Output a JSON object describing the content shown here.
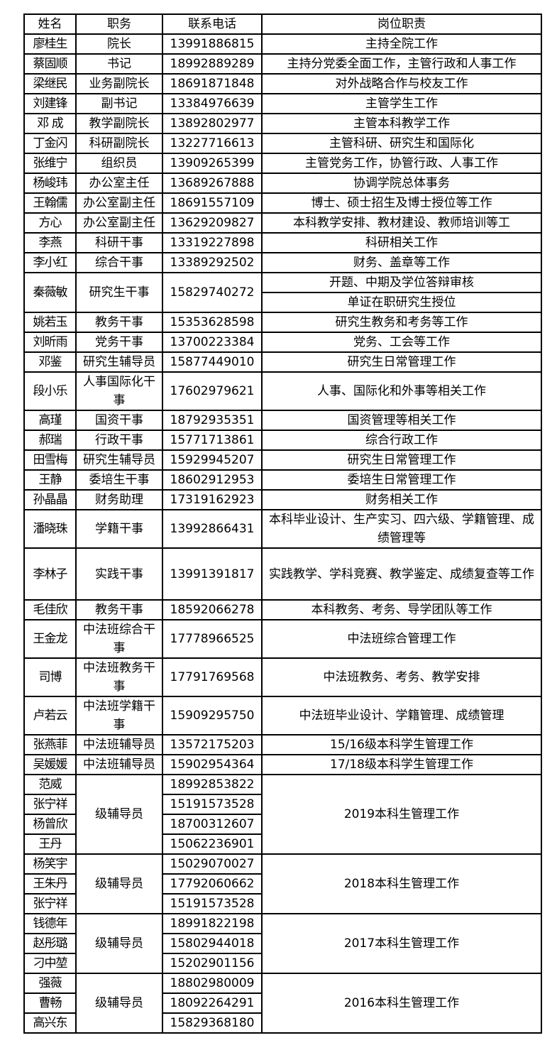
{
  "header": {
    "name": "姓名",
    "title": "职务",
    "phone": "联系电话",
    "duty": "岗位职责"
  },
  "rows": [
    {
      "name": "廖桂生",
      "title": "院长",
      "phone": "13991886815",
      "duties": [
        "主持全院工作"
      ]
    },
    {
      "name": "蔡固顺",
      "title": "书记",
      "phone": "18992889289",
      "duties": [
        "主持分党委全面工作，主管行政和人事工作"
      ]
    },
    {
      "name": "梁继民",
      "title": "业务副院长",
      "phone": "18691871848",
      "duties": [
        "对外战略合作与校友工作"
      ]
    },
    {
      "name": "刘建锋",
      "title": "副书记",
      "phone": "13384976639",
      "duties": [
        "主管学生工作"
      ]
    },
    {
      "name": "邓  成",
      "title": "教学副院长",
      "phone": "13892802977",
      "duties": [
        "主管本科教学工作"
      ]
    },
    {
      "name": "丁金闪",
      "title": "科研副院长",
      "phone": "13227716613",
      "duties": [
        "主管科研、研究生和国际化"
      ]
    },
    {
      "name": "张维宁",
      "title": "组织员",
      "phone": "13909265399",
      "duties": [
        "主管党务工作，协管行政、人事工作"
      ]
    },
    {
      "name": "杨峻玮",
      "title": "办公室主任",
      "phone": "13689267888",
      "duties": [
        "协调学院总体事务"
      ]
    },
    {
      "name": "王翰儒",
      "title": "办公室副主任",
      "phone": "18691557109",
      "duties": [
        "博士、硕士招生及博士授位等工作"
      ]
    },
    {
      "name": "方心",
      "title": "办公室副主任",
      "phone": "13629209827",
      "duties": [
        "本科教学安排、教材建设、教师培训等工"
      ]
    },
    {
      "name": "李燕",
      "title": "科研干事",
      "phone": "13319227898",
      "duties": [
        "科研相关工作"
      ]
    },
    {
      "name": "李小红",
      "title": "综合干事",
      "phone": "13389292502",
      "duties": [
        "财务、盖章等工作"
      ]
    },
    {
      "name": "秦薇敏",
      "title": "研究生干事",
      "phone": "15829740272",
      "duties": [
        "开题、中期及学位答辩审核",
        "单证在职研究生授位"
      ]
    },
    {
      "name": "姚若玉",
      "title": "教务干事",
      "phone": "15353628598",
      "duties": [
        "研究生教务和考务等工作"
      ]
    },
    {
      "name": "刘昕雨",
      "title": "党务干事",
      "phone": "13700223384",
      "duties": [
        "党务、工会等工作"
      ]
    },
    {
      "name": "邓鉴",
      "title": "研究生辅导员",
      "phone": "15877449010",
      "duties": [
        "研究生日常管理工作"
      ]
    },
    {
      "name": "段小乐",
      "title": "人事国际化干事",
      "phone": "17602979621",
      "duties": [
        "人事、国际化和外事等相关工作"
      ]
    },
    {
      "name": "高瑾",
      "title": "国资干事",
      "phone": "18792935351",
      "duties": [
        "国资管理等相关工作"
      ]
    },
    {
      "name": "郝瑞",
      "title": "行政干事",
      "phone": "15771713861",
      "duties": [
        "综合行政工作"
      ]
    },
    {
      "name": "田雪梅",
      "title": "研究生辅导员",
      "phone": "15929945207",
      "duties": [
        "研究生日常管理工作"
      ]
    },
    {
      "name": "王静",
      "title": "委培生干事",
      "phone": "18602912953",
      "duties": [
        "委培生日常管理工作"
      ]
    },
    {
      "name": "孙晶晶",
      "title": "财务助理",
      "phone": "17319162923",
      "duties": [
        "财务相关工作"
      ]
    },
    {
      "name": "潘晓珠",
      "title": "学籍干事",
      "phone": "13992866431",
      "duties": [
        "本科毕业设计、生产实习、四六级、学籍管理、成绩管理等"
      ]
    },
    {
      "name": "李林子",
      "title": "实践干事",
      "phone": "13991391817",
      "duties": [
        "实践教学、学科竞赛、教学鉴定、成绩复查等工作"
      ]
    },
    {
      "name": "毛佳欣",
      "title": "教务干事",
      "phone": "18592066278",
      "duties": [
        "本科教务、考务、导学团队等工作"
      ]
    },
    {
      "name": "王金龙",
      "title": "中法班综合干事",
      "phone": "17778966525",
      "duties": [
        "中法班综合管理工作"
      ]
    },
    {
      "name": "司博",
      "title": "中法班教务干事",
      "phone": "17791769568",
      "duties": [
        "中法班教务、考务、教学安排"
      ]
    },
    {
      "name": "卢若云",
      "title": "中法班学籍干事",
      "phone": "15909295750",
      "duties": [
        "中法班毕业设计、学籍管理、成绩管理"
      ]
    },
    {
      "name": "张燕菲",
      "title": "中法班辅导员",
      "phone": "13572175203",
      "duties": [
        "15/16级本科学生管理工作"
      ]
    },
    {
      "name": "吴媛媛",
      "title": "中法班辅导员",
      "phone": "15902954364",
      "duties": [
        "17/18级本科学生管理工作"
      ]
    }
  ],
  "groups": [
    {
      "title": "级辅导员",
      "duty": "2019本科生管理工作",
      "members": [
        {
          "name": "范威",
          "phone": "18992853822"
        },
        {
          "name": "张宁祥",
          "phone": "15191573528"
        },
        {
          "name": "杨曾欣",
          "phone": "18700312607"
        },
        {
          "name": "王丹",
          "phone": "15062236901"
        }
      ]
    },
    {
      "title": "级辅导员",
      "duty": "2018本科生管理工作",
      "members": [
        {
          "name": "杨笑宇",
          "phone": "15029070027"
        },
        {
          "name": "王朱丹",
          "phone": "17792060662"
        },
        {
          "name": "张宁祥",
          "phone": "15191573528"
        }
      ]
    },
    {
      "title": "级辅导员",
      "duty": "2017本科生管理工作",
      "members": [
        {
          "name": "钱德年",
          "phone": "18991822198"
        },
        {
          "name": "赵彤璐",
          "phone": "15802944018"
        },
        {
          "name": "刁中堃",
          "phone": "15202901156"
        }
      ]
    },
    {
      "title": "级辅导员",
      "duty": "2016本科生管理工作",
      "members": [
        {
          "name": "强薇",
          "phone": "18802980009"
        },
        {
          "name": "曹畅",
          "phone": "18092264291"
        },
        {
          "name": "高兴东",
          "phone": "15829368180"
        }
      ]
    }
  ]
}
